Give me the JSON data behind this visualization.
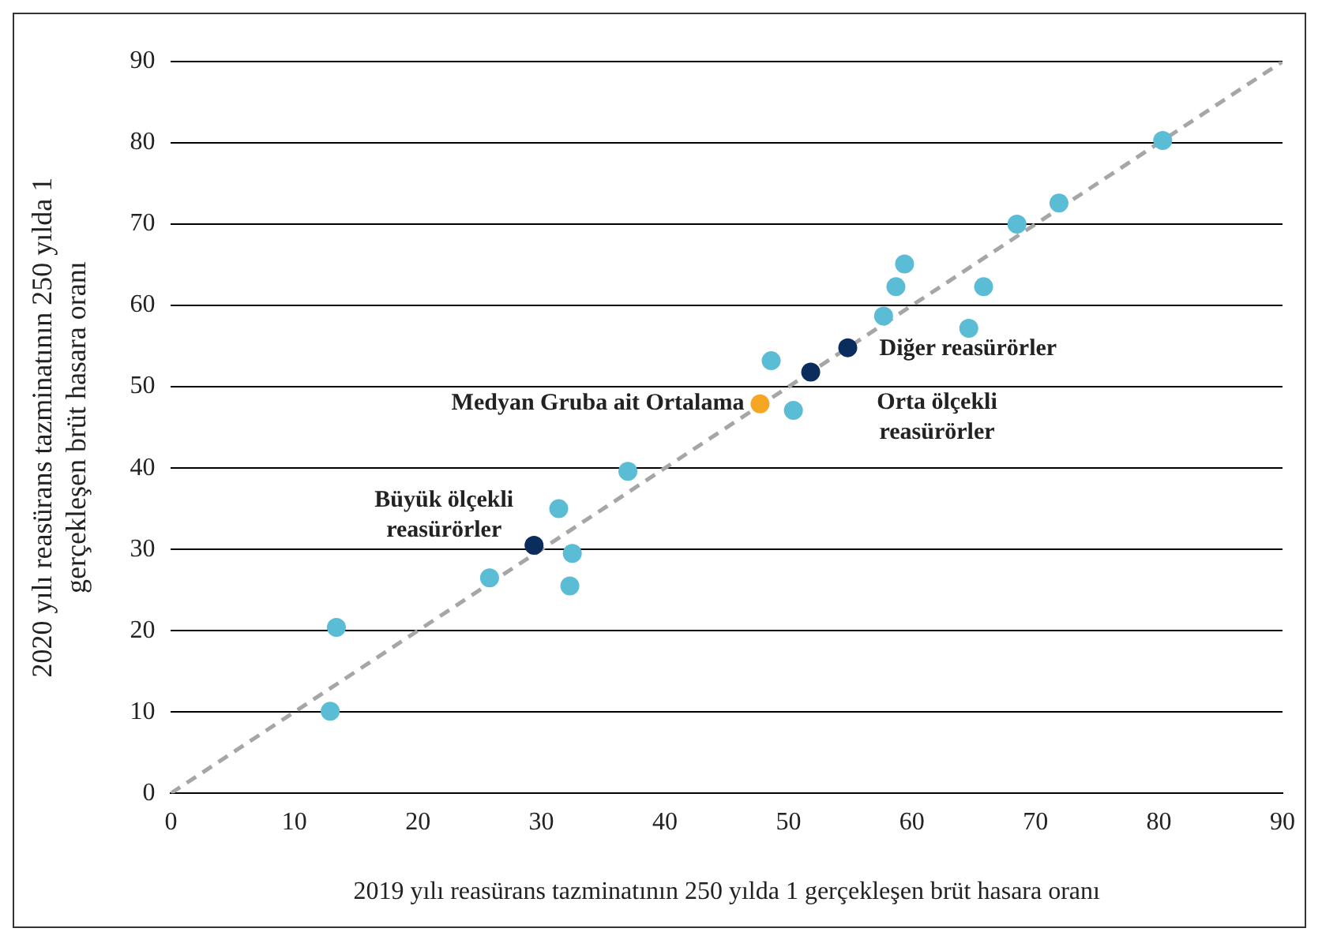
{
  "chart_data": {
    "type": "scatter",
    "xlabel": "2019 yılı reasürans tazminatının 250 yılda 1 gerçekleşen brüt hasara oranı",
    "ylabel": "2020 yılı reasürans tazminatının 250 yılda 1\ngerçekleşen brüt hasara oranı",
    "xlim": [
      0,
      90
    ],
    "xticks": [
      0,
      10,
      20,
      30,
      40,
      50,
      60,
      70,
      80,
      90
    ],
    "ylim": [
      0,
      90
    ],
    "yticks": [
      0,
      10,
      20,
      30,
      40,
      50,
      60,
      70,
      80,
      90
    ],
    "grid": "y",
    "legend": false,
    "marker": "circle",
    "series": [
      {
        "color": "#5bbcd6",
        "x": [
          80.3,
          71.9,
          68.5,
          59.4,
          58.7,
          65.8,
          57.7,
          64.6,
          48.6,
          50.4,
          37.0,
          31.4,
          32.5,
          32.3,
          25.8,
          13.4,
          12.9
        ],
        "values": [
          80.3,
          72.6,
          70.0,
          65.1,
          62.3,
          62.3,
          58.7,
          57.2,
          53.2,
          47.1,
          39.6,
          35.0,
          29.5,
          25.5,
          26.5,
          20.4,
          10.1
        ]
      },
      {
        "color": "#0a2d5e",
        "x": [
          29.4,
          51.8,
          54.8
        ],
        "values": [
          30.5,
          51.8,
          54.8
        ]
      },
      {
        "color": "#f5a623",
        "x": [
          47.7
        ],
        "values": [
          47.9
        ]
      },
      {
        "type": "line",
        "color": "#a6a6a6",
        "line_style": "dashed",
        "marker": "none",
        "x": [
          0,
          90
        ],
        "values": [
          0,
          90
        ]
      }
    ],
    "annotations": [
      {
        "text": "Büyük ölçekli\nreasürörler",
        "x": 29.4,
        "y": 30.5
      },
      {
        "text": "Medyan Gruba ait Ortalama",
        "x": 47.7,
        "y": 47.9
      },
      {
        "text": "Orta ölçekli\nreasürörler",
        "x": 51.8,
        "y": 51.8
      },
      {
        "text": "Diğer reasürörler",
        "x": 54.8,
        "y": 54.8
      }
    ]
  }
}
